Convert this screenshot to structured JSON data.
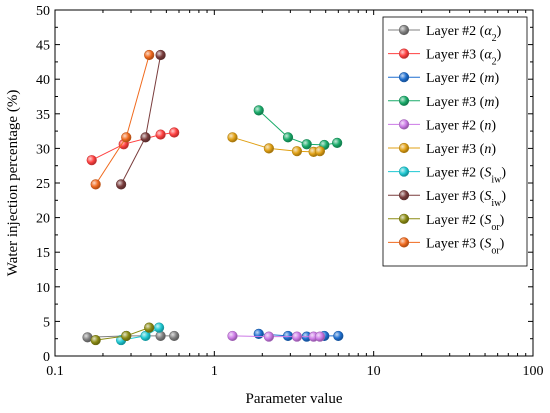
{
  "chart_data": {
    "type": "scatter",
    "title": "",
    "xlabel": "Parameter value",
    "ylabel": "Water injection percentage (%)",
    "xscale": "log",
    "xlim": [
      0.1,
      100
    ],
    "ylim": [
      0,
      50
    ],
    "x_ticks": [
      0.1,
      1,
      10,
      100
    ],
    "x_tick_labels": [
      "0.1",
      "1",
      "10",
      "100"
    ],
    "y_ticks": [
      0,
      5,
      10,
      15,
      20,
      25,
      30,
      35,
      40,
      45,
      50
    ],
    "y_tick_labels": [
      "0",
      "5",
      "10",
      "15",
      "20",
      "25",
      "30",
      "35",
      "40",
      "45",
      "50"
    ],
    "grid": false,
    "legend_position": "top-right",
    "series": [
      {
        "name": "Layer #2 (α2)",
        "label_main": "Layer #2 (",
        "label_sym": "α",
        "label_sub": "2",
        "label_close": ")",
        "color": "#808080",
        "x": [
          0.16,
          0.28,
          0.46,
          0.56
        ],
        "y": [
          2.7,
          2.9,
          2.9,
          2.9
        ]
      },
      {
        "name": "Layer #3 (α2)",
        "label_main": "Layer #3 (",
        "label_sym": "α",
        "label_sub": "2",
        "label_close": ")",
        "color": "#ff4040",
        "x": [
          0.17,
          0.27,
          0.46,
          0.56
        ],
        "y": [
          28.3,
          30.6,
          32.0,
          32.3
        ]
      },
      {
        "name": "Layer #2 (m)",
        "label_main": "Layer #2 (",
        "label_sym": "m",
        "label_sub": "",
        "label_close": ")",
        "color": "#1f6fd0",
        "x": [
          1.9,
          2.9,
          3.8,
          4.9,
          6.0
        ],
        "y": [
          3.2,
          2.9,
          2.8,
          2.9,
          2.9
        ]
      },
      {
        "name": "Layer #3 (m)",
        "label_main": "Layer #3 (",
        "label_sym": "m",
        "label_sub": "",
        "label_close": ")",
        "color": "#1aab6a",
        "x": [
          1.9,
          2.9,
          3.8,
          4.9,
          5.9
        ],
        "y": [
          35.5,
          31.6,
          30.6,
          30.5,
          30.8
        ]
      },
      {
        "name": "Layer #2 (n)",
        "label_main": "Layer #2 (",
        "label_sym": "n",
        "label_sub": "",
        "label_close": ")",
        "color": "#cc7ae6",
        "x": [
          1.3,
          2.2,
          3.3,
          4.2,
          4.6
        ],
        "y": [
          2.9,
          2.8,
          2.8,
          2.8,
          2.8
        ]
      },
      {
        "name": "Layer #3 (n)",
        "label_main": "Layer #3 (",
        "label_sym": "n",
        "label_sub": "",
        "label_close": ")",
        "color": "#e0a014",
        "x": [
          1.3,
          2.2,
          3.3,
          4.2,
          4.6
        ],
        "y": [
          31.6,
          30.0,
          29.6,
          29.5,
          29.6
        ]
      },
      {
        "name": "Layer #2 (Siw)",
        "label_main": "Layer #2 (",
        "label_sym": "S",
        "label_sub": "iw",
        "label_close": ")",
        "color": "#1ec8d2",
        "x": [
          0.26,
          0.37,
          0.45
        ],
        "y": [
          2.3,
          2.9,
          4.1
        ]
      },
      {
        "name": "Layer #3 (Siw)",
        "label_main": "Layer #3 (",
        "label_sym": "S",
        "label_sub": "iw",
        "label_close": ")",
        "color": "#7a3d3d",
        "x": [
          0.26,
          0.37,
          0.46
        ],
        "y": [
          24.8,
          31.6,
          43.5
        ]
      },
      {
        "name": "Layer #2 (Sor)",
        "label_main": "Layer #2 (",
        "label_sym": "S",
        "label_sub": "or",
        "label_close": ")",
        "color": "#8c8c14",
        "x": [
          0.18,
          0.28,
          0.39
        ],
        "y": [
          2.3,
          2.9,
          4.1
        ]
      },
      {
        "name": "Layer #3 (Sor)",
        "label_main": "Layer #3 (",
        "label_sym": "S",
        "label_sub": "or",
        "label_close": ")",
        "color": "#f06a1e",
        "x": [
          0.18,
          0.28,
          0.39
        ],
        "y": [
          24.8,
          31.6,
          43.5
        ]
      }
    ]
  }
}
